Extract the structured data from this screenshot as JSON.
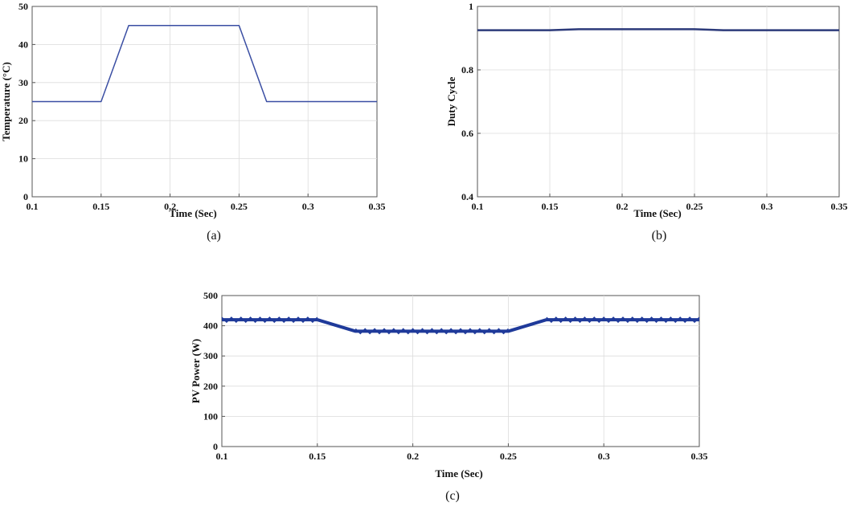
{
  "chart_data": [
    {
      "id": "a",
      "type": "line",
      "caption": "(a)",
      "title": "",
      "xlabel": "Time (Sec)",
      "ylabel": "Temperature (°C)",
      "xlim": [
        0.1,
        0.35
      ],
      "ylim": [
        0,
        50
      ],
      "xticks": [
        "0.1",
        "0.15",
        "0.2",
        "0.25",
        "0.3",
        "0.35"
      ],
      "yticks": [
        "0",
        "10",
        "20",
        "30",
        "40",
        "50"
      ],
      "grid": true,
      "series": [
        {
          "color": "#3a4ea3",
          "x": [
            0.1,
            0.15,
            0.17,
            0.25,
            0.27,
            0.35
          ],
          "y": [
            25,
            25,
            45,
            45,
            25,
            25
          ]
        }
      ]
    },
    {
      "id": "b",
      "type": "line",
      "caption": "(b)",
      "title": "",
      "xlabel": "Time (Sec)",
      "ylabel": "Duty Cycle",
      "xlim": [
        0.1,
        0.35
      ],
      "ylim": [
        0.4,
        1
      ],
      "xticks": [
        "0.1",
        "0.15",
        "0.2",
        "0.25",
        "0.3",
        "0.35"
      ],
      "yticks": [
        "0.4",
        "0.6",
        "0.8",
        "1"
      ],
      "grid": true,
      "series": [
        {
          "color": "#2c3a7a",
          "x": [
            0.1,
            0.15,
            0.17,
            0.25,
            0.27,
            0.35
          ],
          "y": [
            0.925,
            0.925,
            0.928,
            0.928,
            0.925,
            0.925
          ]
        }
      ]
    },
    {
      "id": "c",
      "type": "line",
      "caption": "(c)",
      "title": "",
      "xlabel": "Time (Sec)",
      "ylabel": "PV Power (W)",
      "xlim": [
        0.1,
        0.35
      ],
      "ylim": [
        0,
        500
      ],
      "xticks": [
        "0.1",
        "0.15",
        "0.2",
        "0.25",
        "0.3",
        "0.35"
      ],
      "yticks": [
        "0",
        "100",
        "200",
        "300",
        "400",
        "500"
      ],
      "grid": true,
      "series": [
        {
          "color": "#1f3a9a",
          "x": [
            0.1,
            0.15,
            0.17,
            0.25,
            0.27,
            0.35
          ],
          "y": [
            420,
            420,
            382,
            382,
            420,
            420
          ]
        }
      ]
    }
  ]
}
